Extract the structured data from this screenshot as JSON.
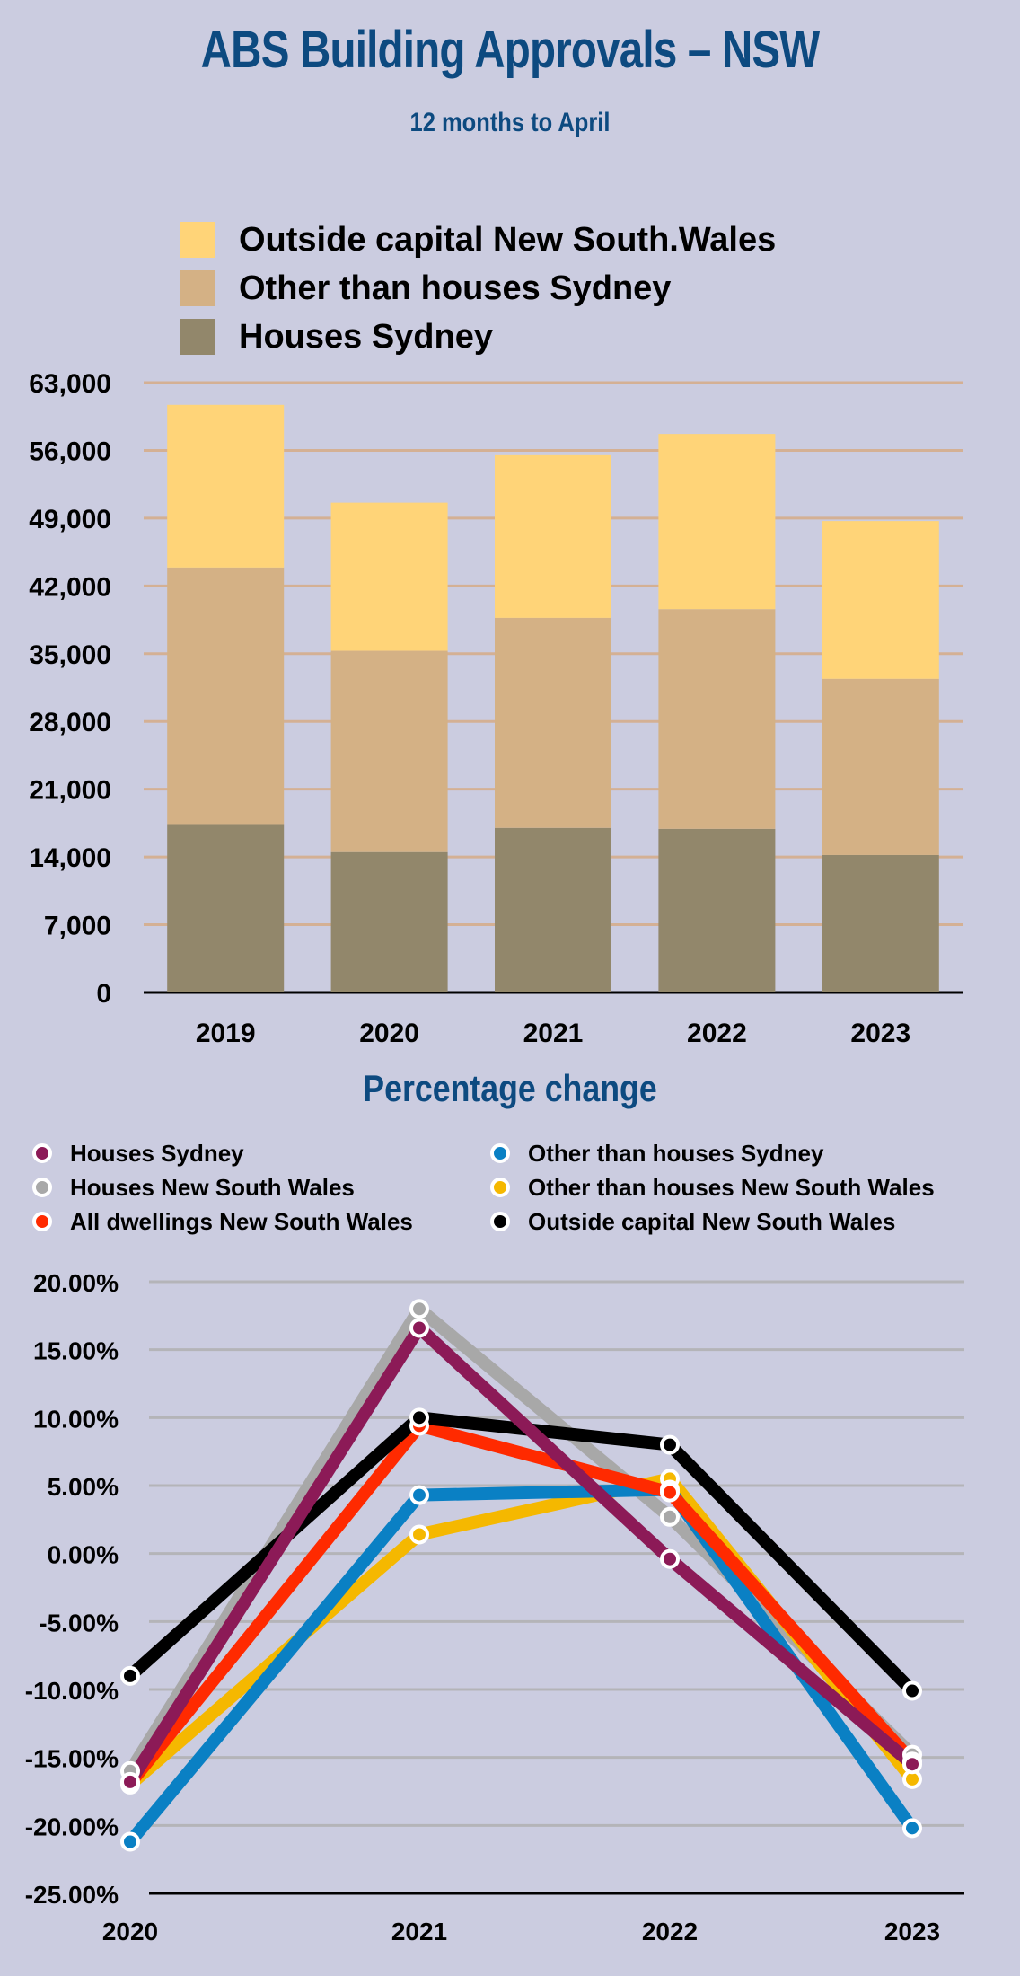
{
  "header": {
    "title": "ABS Building Approvals – NSW",
    "subtitle": "12 months to April"
  },
  "section2_title": "Percentage change",
  "chart_data": [
    {
      "type": "bar",
      "stacked": true,
      "title": "ABS Building Approvals – NSW",
      "subtitle": "12 months to April",
      "categories": [
        "2019",
        "2020",
        "2021",
        "2022",
        "2023"
      ],
      "series": [
        {
          "name": "Houses  Sydney",
          "color": "#92876b",
          "values": [
            17400,
            14500,
            17000,
            16900,
            14200
          ]
        },
        {
          "name": "Other than houses  Sydney",
          "color": "#d4b185",
          "values": [
            26500,
            20800,
            21700,
            22700,
            18200
          ]
        },
        {
          "name": "Outside capital New South.Wales",
          "color": "#ffd478",
          "values": [
            16800,
            15300,
            16800,
            18100,
            16300
          ]
        }
      ],
      "legend_order": [
        "Outside capital New South.Wales",
        "Other than houses  Sydney",
        "Houses  Sydney"
      ],
      "legend_placement": "top-left",
      "ylim": [
        0,
        63000
      ],
      "yticks": [
        "0",
        "7,000",
        "14,000",
        "21,000",
        "28,000",
        "35,000",
        "42,000",
        "49,000",
        "56,000",
        "63,000"
      ],
      "ytick_values": [
        0,
        7000,
        14000,
        21000,
        28000,
        35000,
        42000,
        49000,
        56000,
        63000
      ],
      "grid": true,
      "grid_color": "#d4b094",
      "xlabel": "",
      "ylabel": ""
    },
    {
      "type": "line",
      "title": "Percentage change",
      "x": [
        "2020",
        "2021",
        "2022",
        "2023"
      ],
      "series": [
        {
          "name": "Houses  Sydney",
          "color": "#8c1a57",
          "values": [
            -16.8,
            16.6,
            -0.4,
            -15.5
          ]
        },
        {
          "name": "Houses  New South Wales",
          "color": "#a8a8a8",
          "values": [
            -16.0,
            18.0,
            2.7,
            -14.8
          ]
        },
        {
          "name": "All dwellings New South Wales",
          "color": "#ff2a00",
          "values": [
            -16.9,
            9.4,
            4.5,
            -15.3
          ]
        },
        {
          "name": "Other than houses  Sydney",
          "color": "#0a80c4",
          "values": [
            -21.2,
            4.3,
            4.7,
            -20.2
          ]
        },
        {
          "name": "Other than houses  New South Wales",
          "color": "#f5b800",
          "values": [
            -17.0,
            1.4,
            5.5,
            -16.6
          ]
        },
        {
          "name": "Outside capital New South Wales",
          "color": "#000000",
          "values": [
            -9.0,
            10.0,
            8.0,
            -10.1
          ]
        }
      ],
      "draw_order": [
        "Houses  New South Wales",
        "Other than houses  New South Wales",
        "Other than houses  Sydney",
        "All dwellings New South Wales",
        "Outside capital New South Wales",
        "Houses  Sydney"
      ],
      "legend_placement": "top",
      "ylim": [
        -25,
        20
      ],
      "yticks": [
        "20.00%",
        "15.00%",
        "10.00%",
        "5.00%",
        "0.00%",
        "-5.00%",
        "-10.00%",
        "-15.00%",
        "-20.00%",
        "-25.00%"
      ],
      "ytick_values": [
        20,
        15,
        10,
        5,
        0,
        -5,
        -10,
        -15,
        -20,
        -25
      ],
      "grid": true,
      "grid_color": "#b4b4b8",
      "xlabel": "",
      "ylabel": ""
    }
  ]
}
